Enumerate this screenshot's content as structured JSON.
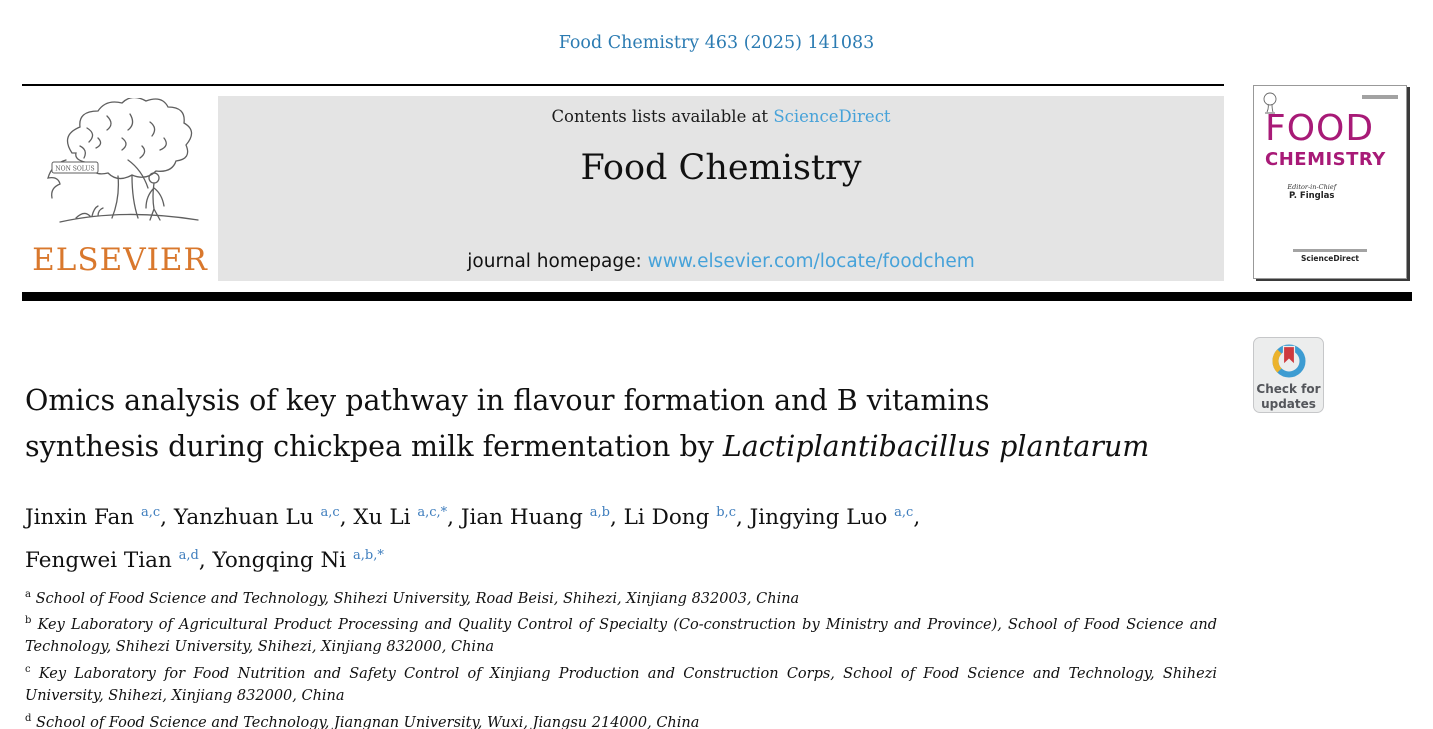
{
  "colors": {
    "citation_blue": "#2b7bb2",
    "link_blue": "#46a2d9",
    "superscript_blue": "#3e7dbd",
    "elsevier_orange": "#d9782d",
    "cover_magenta": "#a81a77",
    "header_gray": "#e4e4e4",
    "bar_black": "#000000",
    "badge_ring_blue": "#3d9cd2",
    "badge_ring_yellow": "#ecb32c",
    "badge_ribbon_red": "#ce3a3f"
  },
  "citation": "Food Chemistry 463 (2025) 141083",
  "banner": {
    "contents_prefix": "Contents lists available at ",
    "sciencedirect": "ScienceDirect",
    "journal_title": "Food Chemistry",
    "homepage_label": "journal homepage: ",
    "homepage_url": "www.elsevier.com/locate/foodchem"
  },
  "elsevier": {
    "wordmark": "ELSEVIER",
    "banner_text": "NON SOLUS"
  },
  "cover": {
    "title_line1": "FOOD",
    "title_line2": "CHEMISTRY",
    "editor_label": "Editor-in-Chief",
    "editor_name": "P. Finglas",
    "sciencedirect": "ScienceDirect"
  },
  "badge": {
    "line1": "Check for",
    "line2": "updates"
  },
  "article": {
    "title_line1": "Omics analysis of key pathway in flavour formation and B vitamins",
    "title_line2_regular": "synthesis during chickpea milk fermentation by ",
    "title_line2_italic": "Lactiplantibacillus plantarum"
  },
  "authors": [
    {
      "name": "Jinxin Fan",
      "sup": "a,c",
      "sep": ", "
    },
    {
      "name": "Yanzhuan Lu",
      "sup": "a,c",
      "sep": ", "
    },
    {
      "name": "Xu Li",
      "sup": "a,c,*",
      "sep": ", "
    },
    {
      "name": "Jian Huang",
      "sup": "a,b",
      "sep": ", "
    },
    {
      "name": "Li Dong",
      "sup": "b,c",
      "sep": ", "
    },
    {
      "name": "Jingying Luo",
      "sup": "a,c",
      "sep": ",",
      "break_after": true
    },
    {
      "name": "Fengwei Tian",
      "sup": "a,d",
      "sep": ", "
    },
    {
      "name": "Yongqing Ni",
      "sup": "a,b,*",
      "sep": ""
    }
  ],
  "affiliations": [
    {
      "sup": "a",
      "text": "School of Food Science and Technology, Shihezi University, Road Beisi, Shihezi, Xinjiang 832003, China"
    },
    {
      "sup": "b",
      "text": "Key Laboratory of Agricultural Product Processing and Quality Control of Specialty (Co-construction by Ministry and Province), School of Food Science and Technology, Shihezi University, Shihezi, Xinjiang 832000, China"
    },
    {
      "sup": "c",
      "text": "Key Laboratory for Food Nutrition and Safety Control of Xinjiang Production and Construction Corps, School of Food Science and Technology, Shihezi University, Shihezi, Xinjiang 832000, China"
    },
    {
      "sup": "d",
      "text": "School of Food Science and Technology, Jiangnan University, Wuxi, Jiangsu 214000, China"
    }
  ]
}
